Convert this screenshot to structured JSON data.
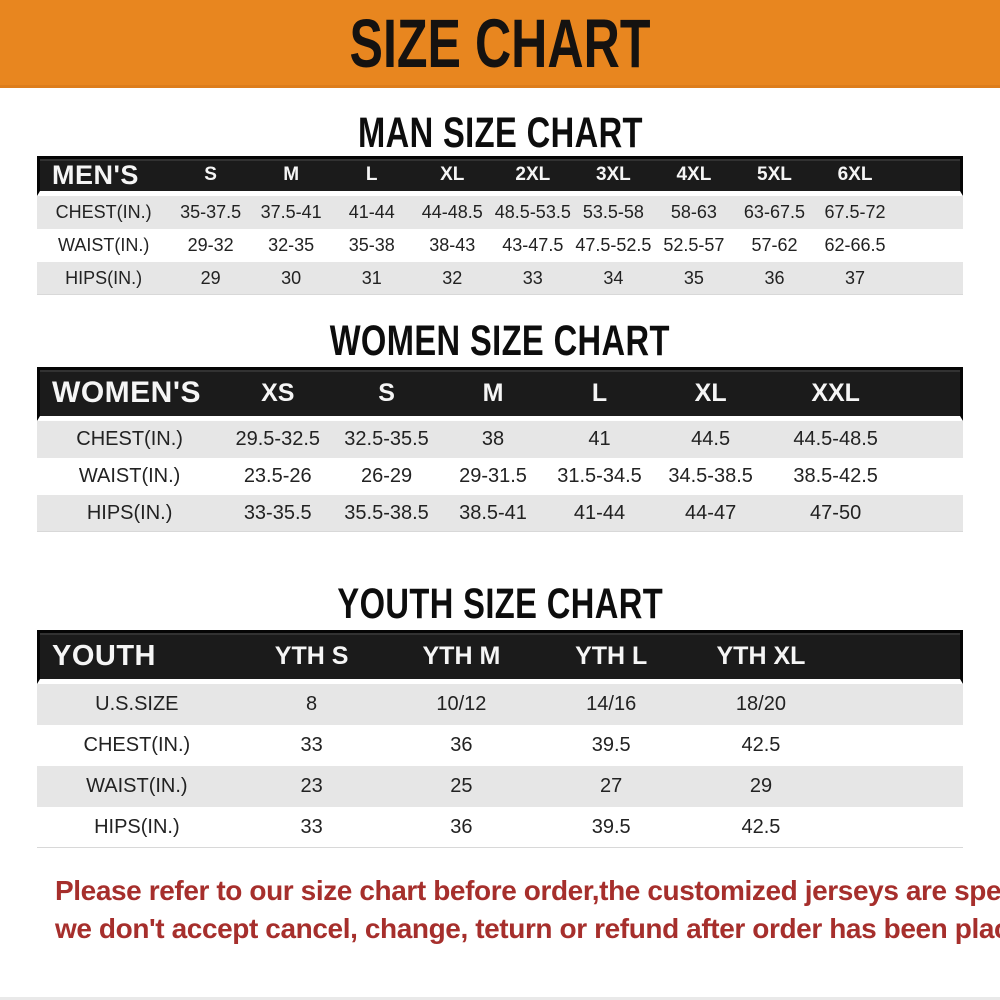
{
  "banner": {
    "title": "SIZE CHART"
  },
  "colors": {
    "banner_bg": "#E8861F",
    "table_header_bg": "#1B1B1B",
    "row_alt_bg": "#E6E6E6",
    "footer_text": "#A62F2C"
  },
  "sections": [
    {
      "heading": "MAN SIZE CHART",
      "table": {
        "header_label": "MEN'S",
        "columns": [
          "S",
          "M",
          "L",
          "XL",
          "2XL",
          "3XL",
          "4XL",
          "5XL",
          "6XL"
        ],
        "rows": [
          {
            "label": "CHEST(IN.)",
            "values": [
              "35-37.5",
              "37.5-41",
              "41-44",
              "44-48.5",
              "48.5-53.5",
              "53.5-58",
              "58-63",
              "63-67.5",
              "67.5-72"
            ]
          },
          {
            "label": "WAIST(IN.)",
            "values": [
              "29-32",
              "32-35",
              "35-38",
              "38-43",
              "43-47.5",
              "47.5-52.5",
              "52.5-57",
              "57-62",
              "62-66.5"
            ]
          },
          {
            "label": "HIPS(IN.)",
            "values": [
              "29",
              "30",
              "31",
              "32",
              "33",
              "34",
              "35",
              "36",
              "37"
            ]
          }
        ]
      }
    },
    {
      "heading": "WOMEN SIZE CHART",
      "table": {
        "header_label": "WOMEN'S",
        "columns": [
          "XS",
          "S",
          "M",
          "L",
          "XL",
          "XXL"
        ],
        "rows": [
          {
            "label": "CHEST(IN.)",
            "values": [
              "29.5-32.5",
              "32.5-35.5",
              "38",
              "41",
              "44.5",
              "44.5-48.5"
            ]
          },
          {
            "label": "WAIST(IN.)",
            "values": [
              "23.5-26",
              "26-29",
              "29-31.5",
              "31.5-34.5",
              "34.5-38.5",
              "38.5-42.5"
            ]
          },
          {
            "label": "HIPS(IN.)",
            "values": [
              "33-35.5",
              "35.5-38.5",
              "38.5-41",
              "41-44",
              "44-47",
              "47-50"
            ]
          }
        ]
      }
    },
    {
      "heading": "YOUTH SIZE CHART",
      "table": {
        "header_label": "YOUTH",
        "columns": [
          "YTH S",
          "YTH M",
          "YTH L",
          "YTH XL"
        ],
        "rows": [
          {
            "label": "U.S.SIZE",
            "values": [
              "8",
              "10/12",
              "14/16",
              "18/20"
            ]
          },
          {
            "label": "CHEST(IN.)",
            "values": [
              "33",
              "36",
              "39.5",
              "42.5"
            ]
          },
          {
            "label": "WAIST(IN.)",
            "values": [
              "23",
              "25",
              "27",
              "29"
            ]
          },
          {
            "label": "HIPS(IN.)",
            "values": [
              "33",
              "36",
              "39.5",
              "42.5"
            ]
          }
        ]
      }
    }
  ],
  "footer": {
    "line1": "Please refer to our size chart before order,the customized jerseys are special products,",
    "line2": "we don't accept cancel, change, teturn or refund after order has been placed!"
  }
}
